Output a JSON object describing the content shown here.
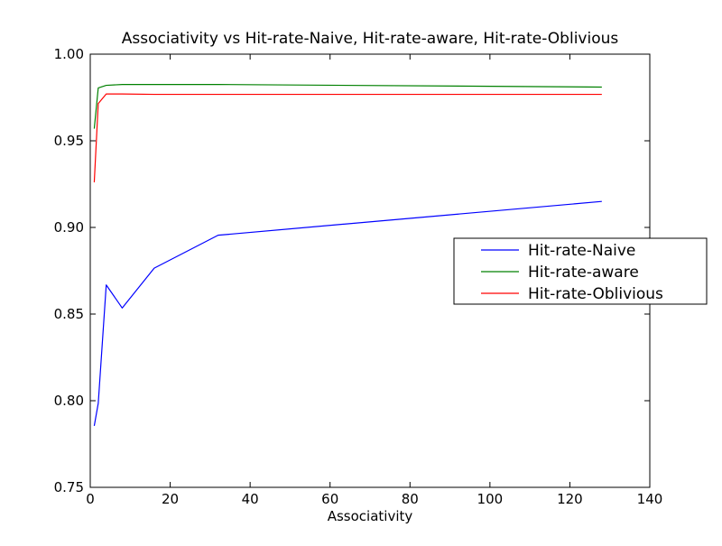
{
  "chart_data": {
    "type": "line",
    "title": "Associativity vs Hit-rate-Naive, Hit-rate-aware, Hit-rate-Oblivious",
    "xlabel": "Associativity",
    "ylabel": "",
    "xlim": [
      0,
      140
    ],
    "ylim": [
      0.75,
      1.0
    ],
    "xticks": [
      0,
      20,
      40,
      60,
      80,
      100,
      120,
      140
    ],
    "yticks": [
      0.75,
      0.8,
      0.85,
      0.9,
      0.95,
      1.0
    ],
    "xtick_labels": [
      "0",
      "20",
      "40",
      "60",
      "80",
      "100",
      "120",
      "140"
    ],
    "ytick_labels": [
      "0.75",
      "0.80",
      "0.85",
      "0.90",
      "0.95",
      "1.00"
    ],
    "grid": false,
    "legend_position": "center-right",
    "x": [
      1,
      2,
      4,
      8,
      16,
      32,
      128
    ],
    "series": [
      {
        "name": "Hit-rate-Naive",
        "color": "#0000ff",
        "values": [
          0.7855,
          0.7985,
          0.8668,
          0.8535,
          0.8765,
          0.8955,
          0.915
        ]
      },
      {
        "name": "Hit-rate-aware",
        "color": "#008000",
        "values": [
          0.957,
          0.9805,
          0.982,
          0.9825,
          0.9825,
          0.9825,
          0.981
        ]
      },
      {
        "name": "Hit-rate-Oblivious",
        "color": "#ff0000",
        "values": [
          0.926,
          0.9715,
          0.977,
          0.977,
          0.9768,
          0.9768,
          0.9768
        ]
      }
    ]
  }
}
